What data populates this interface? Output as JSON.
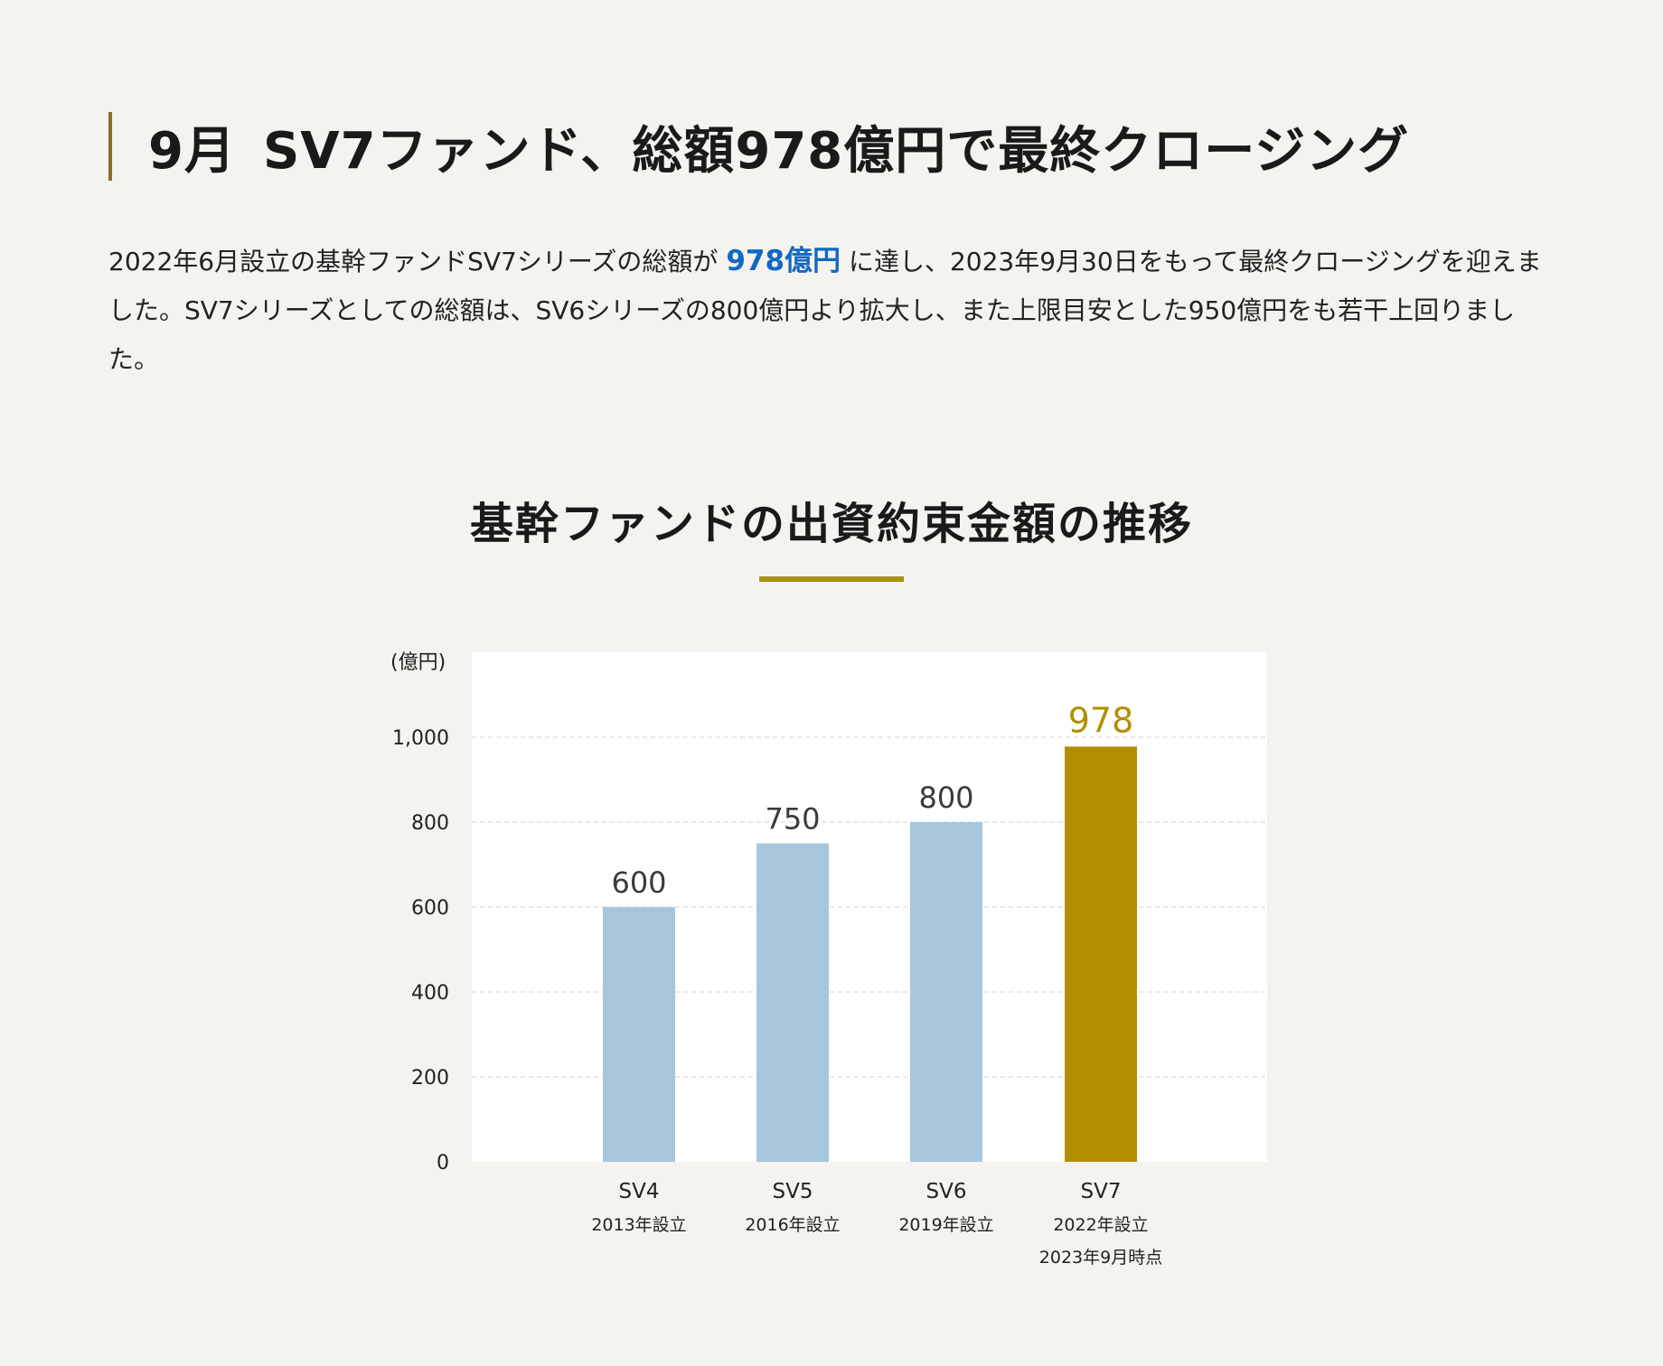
{
  "headline": {
    "month": "9月",
    "title": "SV7ファンド、総額978億円で最終クロージング"
  },
  "intro": {
    "before": "2022年6月設立の基幹ファンドSV7シリーズの総額が",
    "highlight": "978億円",
    "after": "に達し、2023年9月30日をもって最終クロージングを迎えました。SV7シリーズとしての総額は、SV6シリーズの800億円より拡大し、また上限目安とした950億円をも若干上回りました。"
  },
  "chart_title": "基幹ファンドの出資約束金額の推移",
  "colors": {
    "title_rule": "#a89116",
    "headline_bar": "#8a6d2c",
    "highlight_text": "#1268c4",
    "bar_default": "#a6c7db",
    "bar_highlight": "#b28f00",
    "value_default": "#3a3a3a",
    "value_highlight": "#b28f00"
  },
  "chart_data": {
    "type": "bar",
    "unit_label": "(億円)",
    "ylim": [
      0,
      1200
    ],
    "yticks": [
      0,
      200,
      400,
      600,
      800,
      1000
    ],
    "ytick_labels": [
      "0",
      "200",
      "400",
      "600",
      "800",
      "1,000"
    ],
    "grid": true,
    "categories": [
      "SV4",
      "SV5",
      "SV6",
      "SV7"
    ],
    "sublabels": [
      [
        "2013年設立"
      ],
      [
        "2016年設立"
      ],
      [
        "2019年設立"
      ],
      [
        "2022年設立",
        "2023年9月時点"
      ]
    ],
    "values": [
      600,
      750,
      800,
      978
    ],
    "value_labels": [
      "600",
      "750",
      "800",
      "978"
    ],
    "highlight_index": 3
  }
}
